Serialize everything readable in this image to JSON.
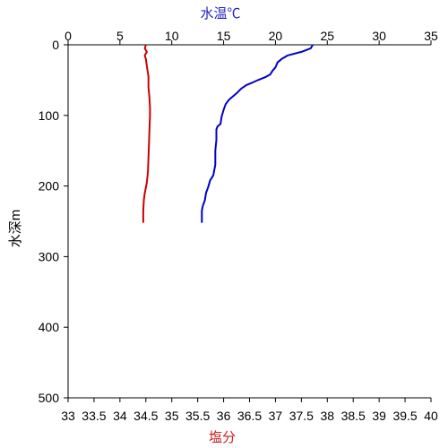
{
  "chart_data": {
    "type": "line",
    "title": "",
    "x_top": {
      "label": "水温℃",
      "range": [
        0,
        35
      ],
      "ticks": [
        0,
        5,
        10,
        15,
        20,
        25,
        30,
        35
      ],
      "color": "#1f1fbf"
    },
    "x_bottom": {
      "label": "塩分",
      "range": [
        33,
        40
      ],
      "ticks": [
        "33",
        "33.5",
        "34",
        "34.5",
        "35",
        "35.5",
        "36",
        "36.5",
        "37",
        "37.5",
        "38",
        "38.5",
        "39",
        "39.5",
        "40"
      ],
      "color": "#cc1f1f"
    },
    "y": {
      "label": "水深m",
      "range": [
        0,
        500
      ],
      "reversed": true,
      "ticks": [
        0,
        100,
        200,
        300,
        400,
        500
      ]
    },
    "grid": false,
    "series": [
      {
        "axis": "top",
        "color": "#0000cc",
        "points": [
          [
            23.6,
            0
          ],
          [
            23.4,
            5
          ],
          [
            22.5,
            10
          ],
          [
            21.2,
            15
          ],
          [
            20.6,
            20
          ],
          [
            20.2,
            25
          ],
          [
            20.0,
            32
          ],
          [
            19.7,
            37
          ],
          [
            19.5,
            42
          ],
          [
            19.0,
            46
          ],
          [
            18.3,
            50
          ],
          [
            17.7,
            54
          ],
          [
            17.2,
            57
          ],
          [
            16.7,
            62
          ],
          [
            16.3,
            68
          ],
          [
            15.9,
            73
          ],
          [
            15.5,
            78
          ],
          [
            15.2,
            84
          ],
          [
            15.0,
            92
          ],
          [
            14.8,
            102
          ],
          [
            14.7,
            112
          ],
          [
            14.4,
            116
          ],
          [
            14.3,
            120
          ],
          [
            14.3,
            135
          ],
          [
            14.2,
            150
          ],
          [
            14.2,
            170
          ],
          [
            14.0,
            185
          ],
          [
            13.7,
            192
          ],
          [
            13.6,
            197
          ],
          [
            13.5,
            202
          ],
          [
            13.3,
            210
          ],
          [
            13.2,
            220
          ],
          [
            13.0,
            228
          ],
          [
            12.9,
            235
          ],
          [
            12.9,
            252
          ]
        ]
      },
      {
        "axis": "bottom",
        "color": "#cc0000",
        "points": [
          [
            34.5,
            0
          ],
          [
            34.48,
            5
          ],
          [
            34.52,
            10
          ],
          [
            34.48,
            15
          ],
          [
            34.5,
            20
          ],
          [
            34.52,
            30
          ],
          [
            34.55,
            45
          ],
          [
            34.55,
            60
          ],
          [
            34.57,
            75
          ],
          [
            34.58,
            90
          ],
          [
            34.58,
            100
          ],
          [
            34.57,
            120
          ],
          [
            34.56,
            140
          ],
          [
            34.55,
            160
          ],
          [
            34.54,
            180
          ],
          [
            34.52,
            195
          ],
          [
            34.48,
            210
          ],
          [
            34.46,
            220
          ],
          [
            34.45,
            235
          ],
          [
            34.45,
            252
          ]
        ]
      }
    ]
  }
}
